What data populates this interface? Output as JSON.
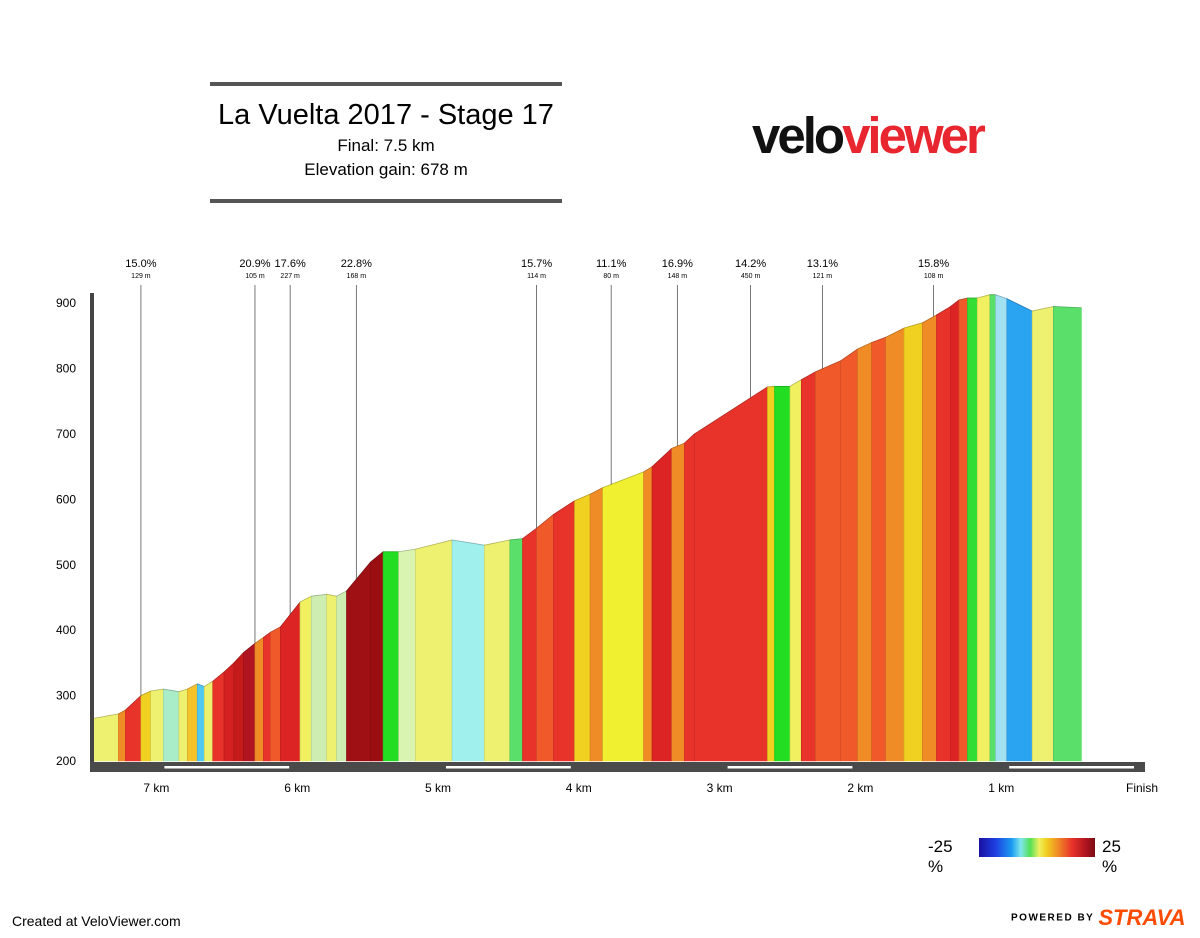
{
  "header": {
    "title": "La Vuelta 2017 - Stage 17",
    "subtitle_distance": "Final: 7.5 km",
    "subtitle_gain": "Elevation gain: 678 m"
  },
  "logo": {
    "part1": "velo",
    "part2": "viewer"
  },
  "footer": {
    "credit": "Created at VeloViewer.com",
    "powered_by": "POWERED BY",
    "strava": "STRAVA"
  },
  "legend": {
    "min_label": "-25 %",
    "max_label": "25 %"
  },
  "chart_data": {
    "type": "area",
    "title": "La Vuelta 2017 - Stage 17",
    "xlabel": "",
    "ylabel": "",
    "x_unit": "km to finish",
    "xlim": [
      7.45,
      0.0
    ],
    "ylim": [
      200,
      920
    ],
    "y_ticks": [
      200,
      300,
      400,
      500,
      600,
      700,
      800,
      900
    ],
    "x_ticks": [
      {
        "x": 7.0,
        "label": "7 km"
      },
      {
        "x": 6.0,
        "label": "6 km"
      },
      {
        "x": 5.0,
        "label": "5 km"
      },
      {
        "x": 4.0,
        "label": "4 km"
      },
      {
        "x": 3.0,
        "label": "3 km"
      },
      {
        "x": 2.0,
        "label": "2 km"
      },
      {
        "x": 1.0,
        "label": "1 km"
      },
      {
        "x": 0.0,
        "label": "Finish"
      }
    ],
    "profile": [
      [
        7.45,
        265,
        "#eef070"
      ],
      [
        7.27,
        272,
        "#f08c26"
      ],
      [
        7.22,
        278,
        "#e8332a"
      ],
      [
        7.11,
        300,
        "#f0d020"
      ],
      [
        7.04,
        307,
        "#eef070"
      ],
      [
        6.95,
        310,
        "#a8ecc8"
      ],
      [
        6.84,
        306,
        "#eef070"
      ],
      [
        6.78,
        310,
        "#f5c22a"
      ],
      [
        6.71,
        318,
        "#50c8f0"
      ],
      [
        6.66,
        314,
        "#eef070"
      ],
      [
        6.6,
        322,
        "#e8332a"
      ],
      [
        6.52,
        336,
        "#d42020"
      ],
      [
        6.45,
        350,
        "#c41a1a"
      ],
      [
        6.38,
        366,
        "#b01420"
      ],
      [
        6.3,
        380,
        "#f08c26"
      ],
      [
        6.24,
        389,
        "#e8332a"
      ],
      [
        6.19,
        397,
        "#f05a2a"
      ],
      [
        6.12,
        405,
        "#dd2424"
      ],
      [
        5.98,
        443,
        "#f0f060"
      ],
      [
        5.9,
        452,
        "#cdeeb0"
      ],
      [
        5.79,
        455,
        "#eef070"
      ],
      [
        5.72,
        452,
        "#cdeeb0"
      ],
      [
        5.65,
        460,
        "#9e1014"
      ],
      [
        5.48,
        504,
        "#9a0e12"
      ],
      [
        5.39,
        520,
        "#22dd22"
      ],
      [
        5.28,
        520,
        "#d8f4b0"
      ],
      [
        5.16,
        524,
        "#eef070"
      ],
      [
        4.9,
        538,
        "#a0f0ee"
      ],
      [
        4.67,
        530,
        "#eef070"
      ],
      [
        4.49,
        538,
        "#5ae06a"
      ],
      [
        4.4,
        540,
        "#e8332a"
      ],
      [
        4.3,
        556,
        "#f05a2a"
      ],
      [
        4.18,
        577,
        "#e8332a"
      ],
      [
        4.03,
        598,
        "#f0d020"
      ],
      [
        3.92,
        608,
        "#f08c26"
      ],
      [
        3.83,
        618,
        "#f0f030"
      ],
      [
        3.54,
        642,
        "#f08c26"
      ],
      [
        3.48,
        650,
        "#dd2424"
      ],
      [
        3.34,
        678,
        "#f08c26"
      ],
      [
        3.25,
        686,
        "#e8332a"
      ],
      [
        3.18,
        700,
        "#e8332a"
      ],
      [
        2.66,
        772,
        "#f0d020"
      ],
      [
        2.61,
        773,
        "#22dd22"
      ],
      [
        2.5,
        773,
        "#f0f060"
      ],
      [
        2.42,
        783,
        "#e8332a"
      ],
      [
        2.32,
        795,
        "#f05a2a"
      ],
      [
        2.14,
        812,
        "#f05a2a"
      ],
      [
        2.02,
        830,
        "#f08c26"
      ],
      [
        1.92,
        840,
        "#f05a2a"
      ],
      [
        1.82,
        848,
        "#f08c26"
      ],
      [
        1.69,
        862,
        "#f0d020"
      ],
      [
        1.56,
        870,
        "#f08c26"
      ],
      [
        1.46,
        882,
        "#e8332a"
      ],
      [
        1.36,
        895,
        "#dd2424"
      ],
      [
        1.3,
        905,
        "#f05a2a"
      ],
      [
        1.24,
        908,
        "#33dd33"
      ],
      [
        1.17,
        908,
        "#f0f060"
      ],
      [
        1.08,
        913,
        "#5ae06a"
      ],
      [
        1.04,
        913,
        "#a0e0f0"
      ],
      [
        0.96,
        907,
        "#2aa3f0"
      ],
      [
        0.78,
        888,
        "#eef070"
      ],
      [
        0.63,
        895,
        "#5ae06a"
      ],
      [
        0.43,
        893,
        null
      ]
    ],
    "annotations": [
      {
        "x": 7.11,
        "grade": "15.0%",
        "length": "129 m"
      },
      {
        "x": 6.3,
        "grade": "20.9%",
        "length": "105 m"
      },
      {
        "x": 6.05,
        "grade": "17.6%",
        "length": "227 m"
      },
      {
        "x": 5.58,
        "grade": "22.8%",
        "length": "168 m"
      },
      {
        "x": 4.3,
        "grade": "15.7%",
        "length": "114 m"
      },
      {
        "x": 3.77,
        "grade": "11.1%",
        "length": "80 m"
      },
      {
        "x": 3.3,
        "grade": "16.9%",
        "length": "148 m"
      },
      {
        "x": 2.78,
        "grade": "14.2%",
        "length": "450 m"
      },
      {
        "x": 2.27,
        "grade": "13.1%",
        "length": "121 m"
      },
      {
        "x": 1.48,
        "grade": "15.8%",
        "length": "108 m"
      }
    ]
  }
}
